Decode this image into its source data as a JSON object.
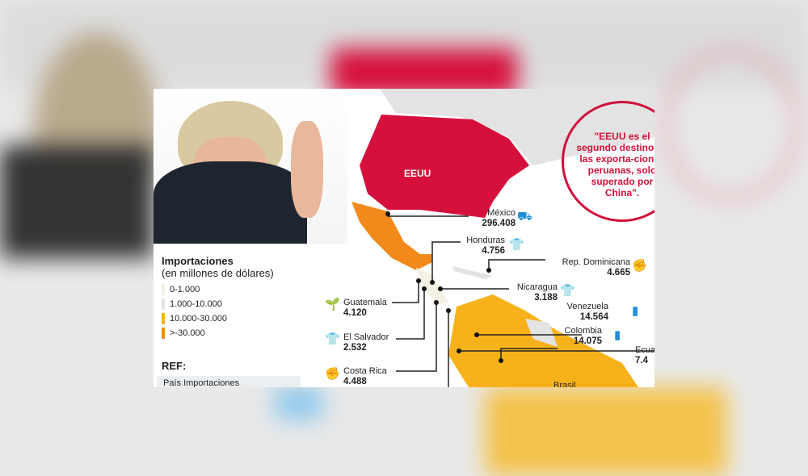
{
  "legend": {
    "title": "Importaciones",
    "subtitle": "(en millones de dólares)",
    "items": [
      {
        "label": "0-1.000",
        "color": "#f3f1e4"
      },
      {
        "label": "1.000-10.000",
        "color": "#e2e2e2"
      },
      {
        "label": "10.000-30.000",
        "color": "#f7b21b"
      },
      {
        "label": ">-30.000",
        "color": "#f28a1b"
      }
    ]
  },
  "ref": {
    "title": "REF:",
    "table_header": "País  Importaciones"
  },
  "quote": "\"EEUU es el segundo destino de las exporta-ciones peruanas, solo superado por China\".",
  "map": {
    "eeuu_label": "EEUU",
    "eeuu_color": "#d6103c"
  },
  "countries": [
    {
      "name": "México",
      "value": "296.408",
      "icon": "forklift-icon"
    },
    {
      "name": "Honduras",
      "value": "4.756",
      "icon": "tshirt-icon"
    },
    {
      "name": "Rep. Dominicana",
      "value": "4.665",
      "icon": "hand-icon"
    },
    {
      "name": "Nicaragua",
      "value": "3.188",
      "icon": "tshirt-icon"
    },
    {
      "name": "Venezuela",
      "value": "14.564",
      "icon": "oil-barrel-icon"
    },
    {
      "name": "Colombia",
      "value": "14.075",
      "icon": "oil-barrel-icon"
    },
    {
      "name": "Ecua",
      "value": "7.4",
      "icon": ""
    },
    {
      "name": "Guatemala",
      "value": "4.120",
      "icon": "plant-icon"
    },
    {
      "name": "El Salvador",
      "value": "2.532",
      "icon": "tshirt-icon"
    },
    {
      "name": "Costa Rica",
      "value": "4.488",
      "icon": "hand-icon"
    },
    {
      "name": "Brasil",
      "value": "",
      "icon": "plane-icon"
    }
  ]
}
